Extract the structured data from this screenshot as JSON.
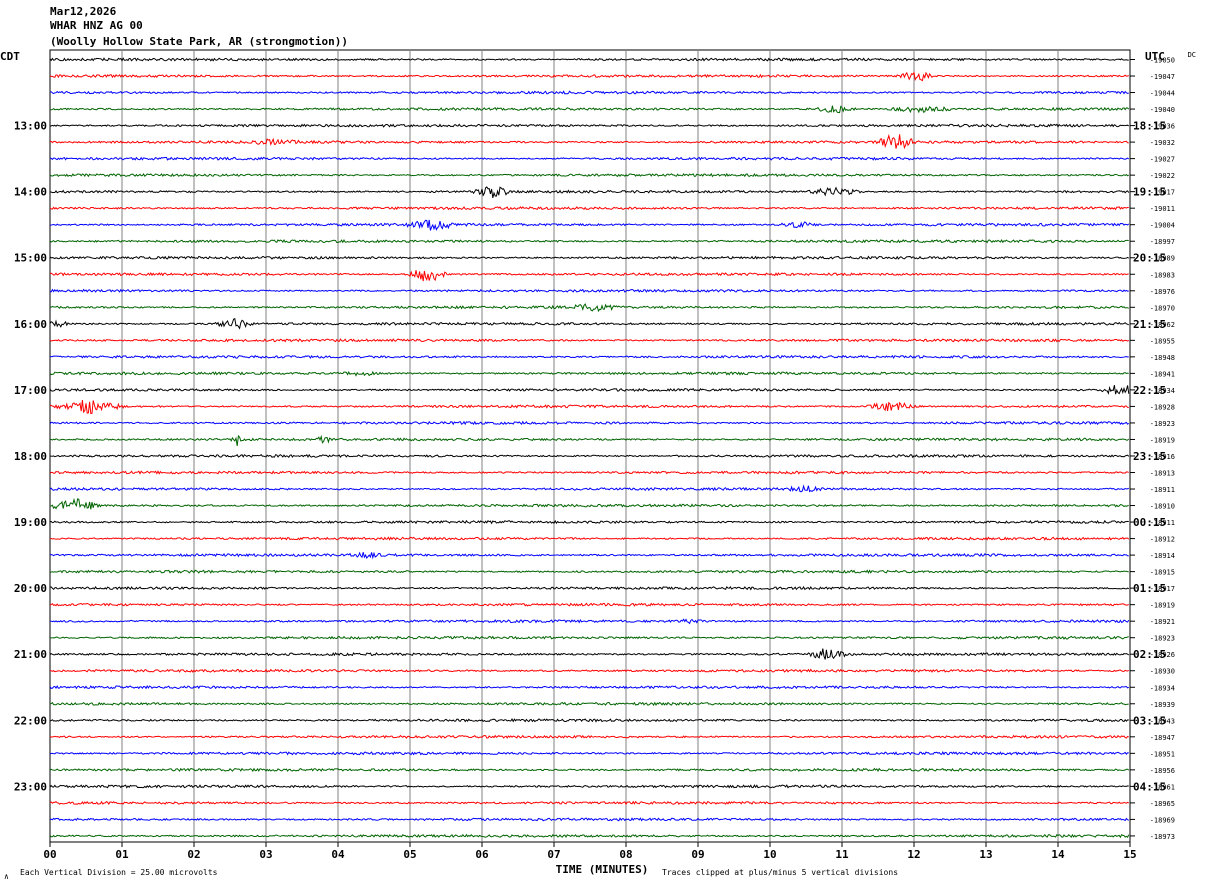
{
  "header": {
    "date": "Mar12,2026",
    "station": "WHAR HNZ AG 00",
    "location": "(Woolly Hollow State Park, AR (strongmotion))"
  },
  "chart_data": {
    "type": "line",
    "left_tz_label": "CDT",
    "right_tz_label": "UTC",
    "dc_label": "DC",
    "xlabel": "TIME (MINUTES)",
    "x_ticks": [
      "00",
      "01",
      "02",
      "03",
      "04",
      "05",
      "06",
      "07",
      "08",
      "09",
      "10",
      "11",
      "12",
      "13",
      "14",
      "15"
    ],
    "xlim": [
      0,
      15
    ],
    "trace_count": 48,
    "trace_colors": [
      "#000000",
      "#ff0000",
      "#0000ff",
      "#006400"
    ],
    "left_hour_labels": [
      "13:00",
      "14:00",
      "15:00",
      "16:00",
      "17:00",
      "18:00",
      "19:00",
      "20:00",
      "21:00",
      "22:00",
      "23:00"
    ],
    "right_hour_labels": [
      "18:15",
      "19:15",
      "20:15",
      "21:15",
      "22:15",
      "23:15",
      "00:15",
      "01:15",
      "02:15",
      "03:15",
      "04:15"
    ],
    "hour_label_first_row": 4,
    "rows_per_hour": 4,
    "dc_offsets": [
      "-19050",
      "-19047",
      "-19044",
      "-19040",
      "-19036",
      "-19032",
      "-19027",
      "-19022",
      "-19017",
      "-19011",
      "-19004",
      "-18997",
      "-18989",
      "-18983",
      "-18976",
      "-18970",
      "-18962",
      "-18955",
      "-18948",
      "-18941",
      "-18934",
      "-18928",
      "-18923",
      "-18919",
      "-18916",
      "-18913",
      "-18911",
      "-18910",
      "-18911",
      "-18912",
      "-18914",
      "-18915",
      "-18917",
      "-18919",
      "-18921",
      "-18923",
      "-18926",
      "-18930",
      "-18934",
      "-18939",
      "-18943",
      "-18947",
      "-18951",
      "-18956",
      "-18961",
      "-18965",
      "-18969",
      "-18973"
    ],
    "events": [
      {
        "row": 1,
        "minute": 12.05,
        "amp": 5,
        "dur": 0.3
      },
      {
        "row": 3,
        "minute": 10.85,
        "amp": 4,
        "dur": 0.4
      },
      {
        "row": 3,
        "minute": 12.1,
        "amp": 3,
        "dur": 0.5
      },
      {
        "row": 5,
        "minute": 3.1,
        "amp": 3,
        "dur": 0.4
      },
      {
        "row": 5,
        "minute": 11.75,
        "amp": 8,
        "dur": 0.3
      },
      {
        "row": 8,
        "minute": 6.15,
        "amp": 6,
        "dur": 0.3
      },
      {
        "row": 8,
        "minute": 10.9,
        "amp": 4,
        "dur": 0.4
      },
      {
        "row": 10,
        "minute": 5.3,
        "amp": 5,
        "dur": 0.4
      },
      {
        "row": 10,
        "minute": 10.4,
        "amp": 3,
        "dur": 0.3
      },
      {
        "row": 13,
        "minute": 5.25,
        "amp": 8,
        "dur": 0.3
      },
      {
        "row": 15,
        "minute": 7.55,
        "amp": 3,
        "dur": 0.4
      },
      {
        "row": 16,
        "minute": 0.1,
        "amp": 3,
        "dur": 0.2
      },
      {
        "row": 16,
        "minute": 2.55,
        "amp": 5,
        "dur": 0.3
      },
      {
        "row": 19,
        "minute": 4.3,
        "amp": 2,
        "dur": 0.4
      },
      {
        "row": 20,
        "minute": 14.85,
        "amp": 6,
        "dur": 0.3
      },
      {
        "row": 21,
        "minute": 0.55,
        "amp": 7,
        "dur": 0.5
      },
      {
        "row": 21,
        "minute": 11.7,
        "amp": 5,
        "dur": 0.4
      },
      {
        "row": 23,
        "minute": 2.6,
        "amp": 6,
        "dur": 0.1
      },
      {
        "row": 23,
        "minute": 3.8,
        "amp": 4,
        "dur": 0.1
      },
      {
        "row": 26,
        "minute": 10.5,
        "amp": 3,
        "dur": 0.3
      },
      {
        "row": 27,
        "minute": 0.35,
        "amp": 6,
        "dur": 0.4
      },
      {
        "row": 30,
        "minute": 4.4,
        "amp": 2,
        "dur": 0.3
      },
      {
        "row": 34,
        "minute": 8.9,
        "amp": 2,
        "dur": 0.2
      },
      {
        "row": 36,
        "minute": 10.8,
        "amp": 6,
        "dur": 0.3
      }
    ],
    "footer_left": "Each Vertical Division =   25.00 microvolts",
    "footer_right": "Traces clipped at plus/minus 5 vertical divisions",
    "corner_mark": "∧"
  }
}
